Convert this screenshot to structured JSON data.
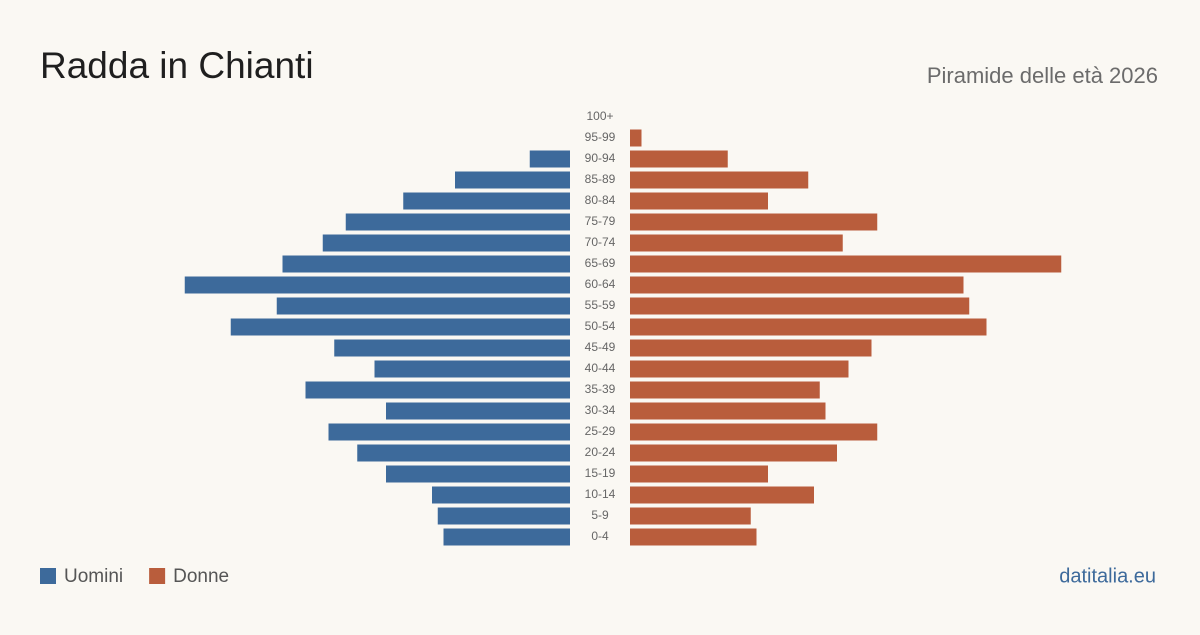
{
  "chart_data": {
    "type": "pyramid",
    "title": "Radda in Chianti",
    "subtitle": "Piramide delle età 2026",
    "source": "datitalia.eu",
    "categories": [
      "100+",
      "95-99",
      "90-94",
      "85-89",
      "80-84",
      "75-79",
      "70-74",
      "65-69",
      "60-64",
      "55-59",
      "50-54",
      "45-49",
      "40-44",
      "35-39",
      "30-34",
      "25-29",
      "20-24",
      "15-19",
      "10-14",
      "5-9",
      "0-4"
    ],
    "series": [
      {
        "name": "Uomini",
        "color": "#3d6a9b",
        "values": [
          0,
          0,
          7,
          20,
          29,
          39,
          43,
          50,
          67,
          51,
          59,
          41,
          34,
          46,
          32,
          42,
          37,
          32,
          24,
          23,
          22
        ]
      },
      {
        "name": "Donne",
        "color": "#b95d3c",
        "values": [
          0,
          2,
          17,
          31,
          24,
          43,
          37,
          75,
          58,
          59,
          62,
          42,
          38,
          33,
          34,
          43,
          36,
          24,
          32,
          21,
          22
        ]
      }
    ],
    "legend": "bottom-left"
  }
}
